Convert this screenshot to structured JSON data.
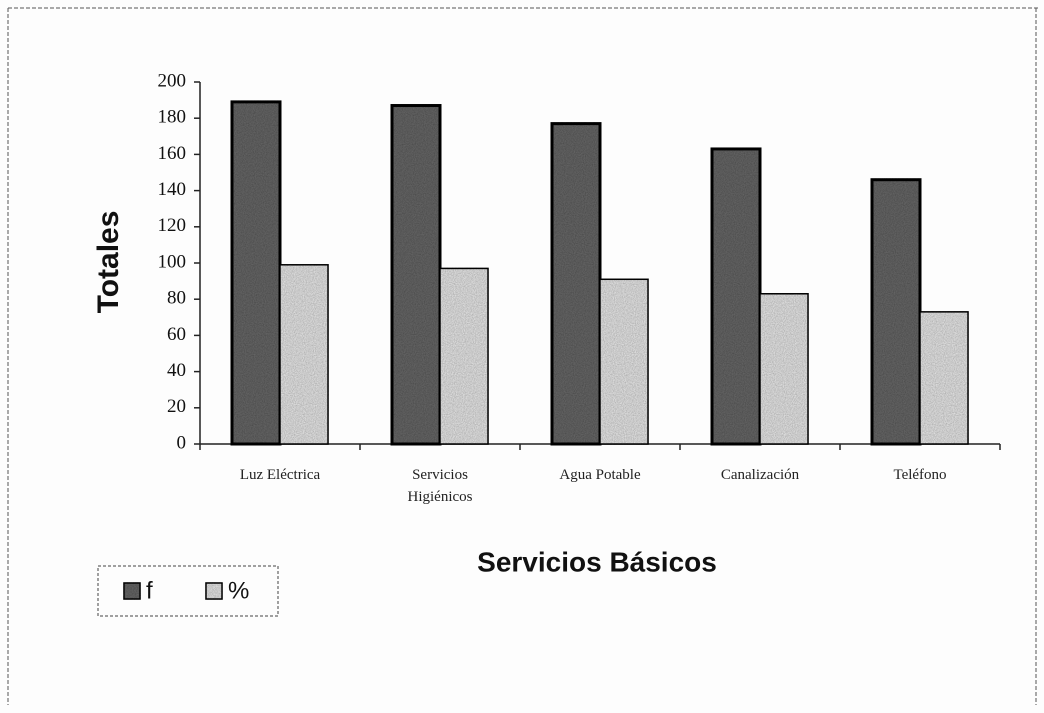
{
  "chart_data": {
    "type": "bar",
    "y_label": "Totales",
    "x_label": "Servicios Básicos",
    "categories": [
      "Luz Eléctrica",
      "Servicios Higiénicos",
      "Agua Potable",
      "Canalización",
      "Teléfono"
    ],
    "series": [
      {
        "name": "f",
        "color": "#6a6a6a",
        "values": [
          189,
          187,
          177,
          163,
          146
        ]
      },
      {
        "name": "%",
        "color": "#ececec",
        "values": [
          99,
          97,
          91,
          83,
          73
        ]
      }
    ],
    "ylim": [
      0,
      200
    ],
    "yticks": [
      0,
      20,
      40,
      60,
      80,
      100,
      120,
      140,
      160,
      180,
      200
    ],
    "legend": "bottom-left"
  }
}
